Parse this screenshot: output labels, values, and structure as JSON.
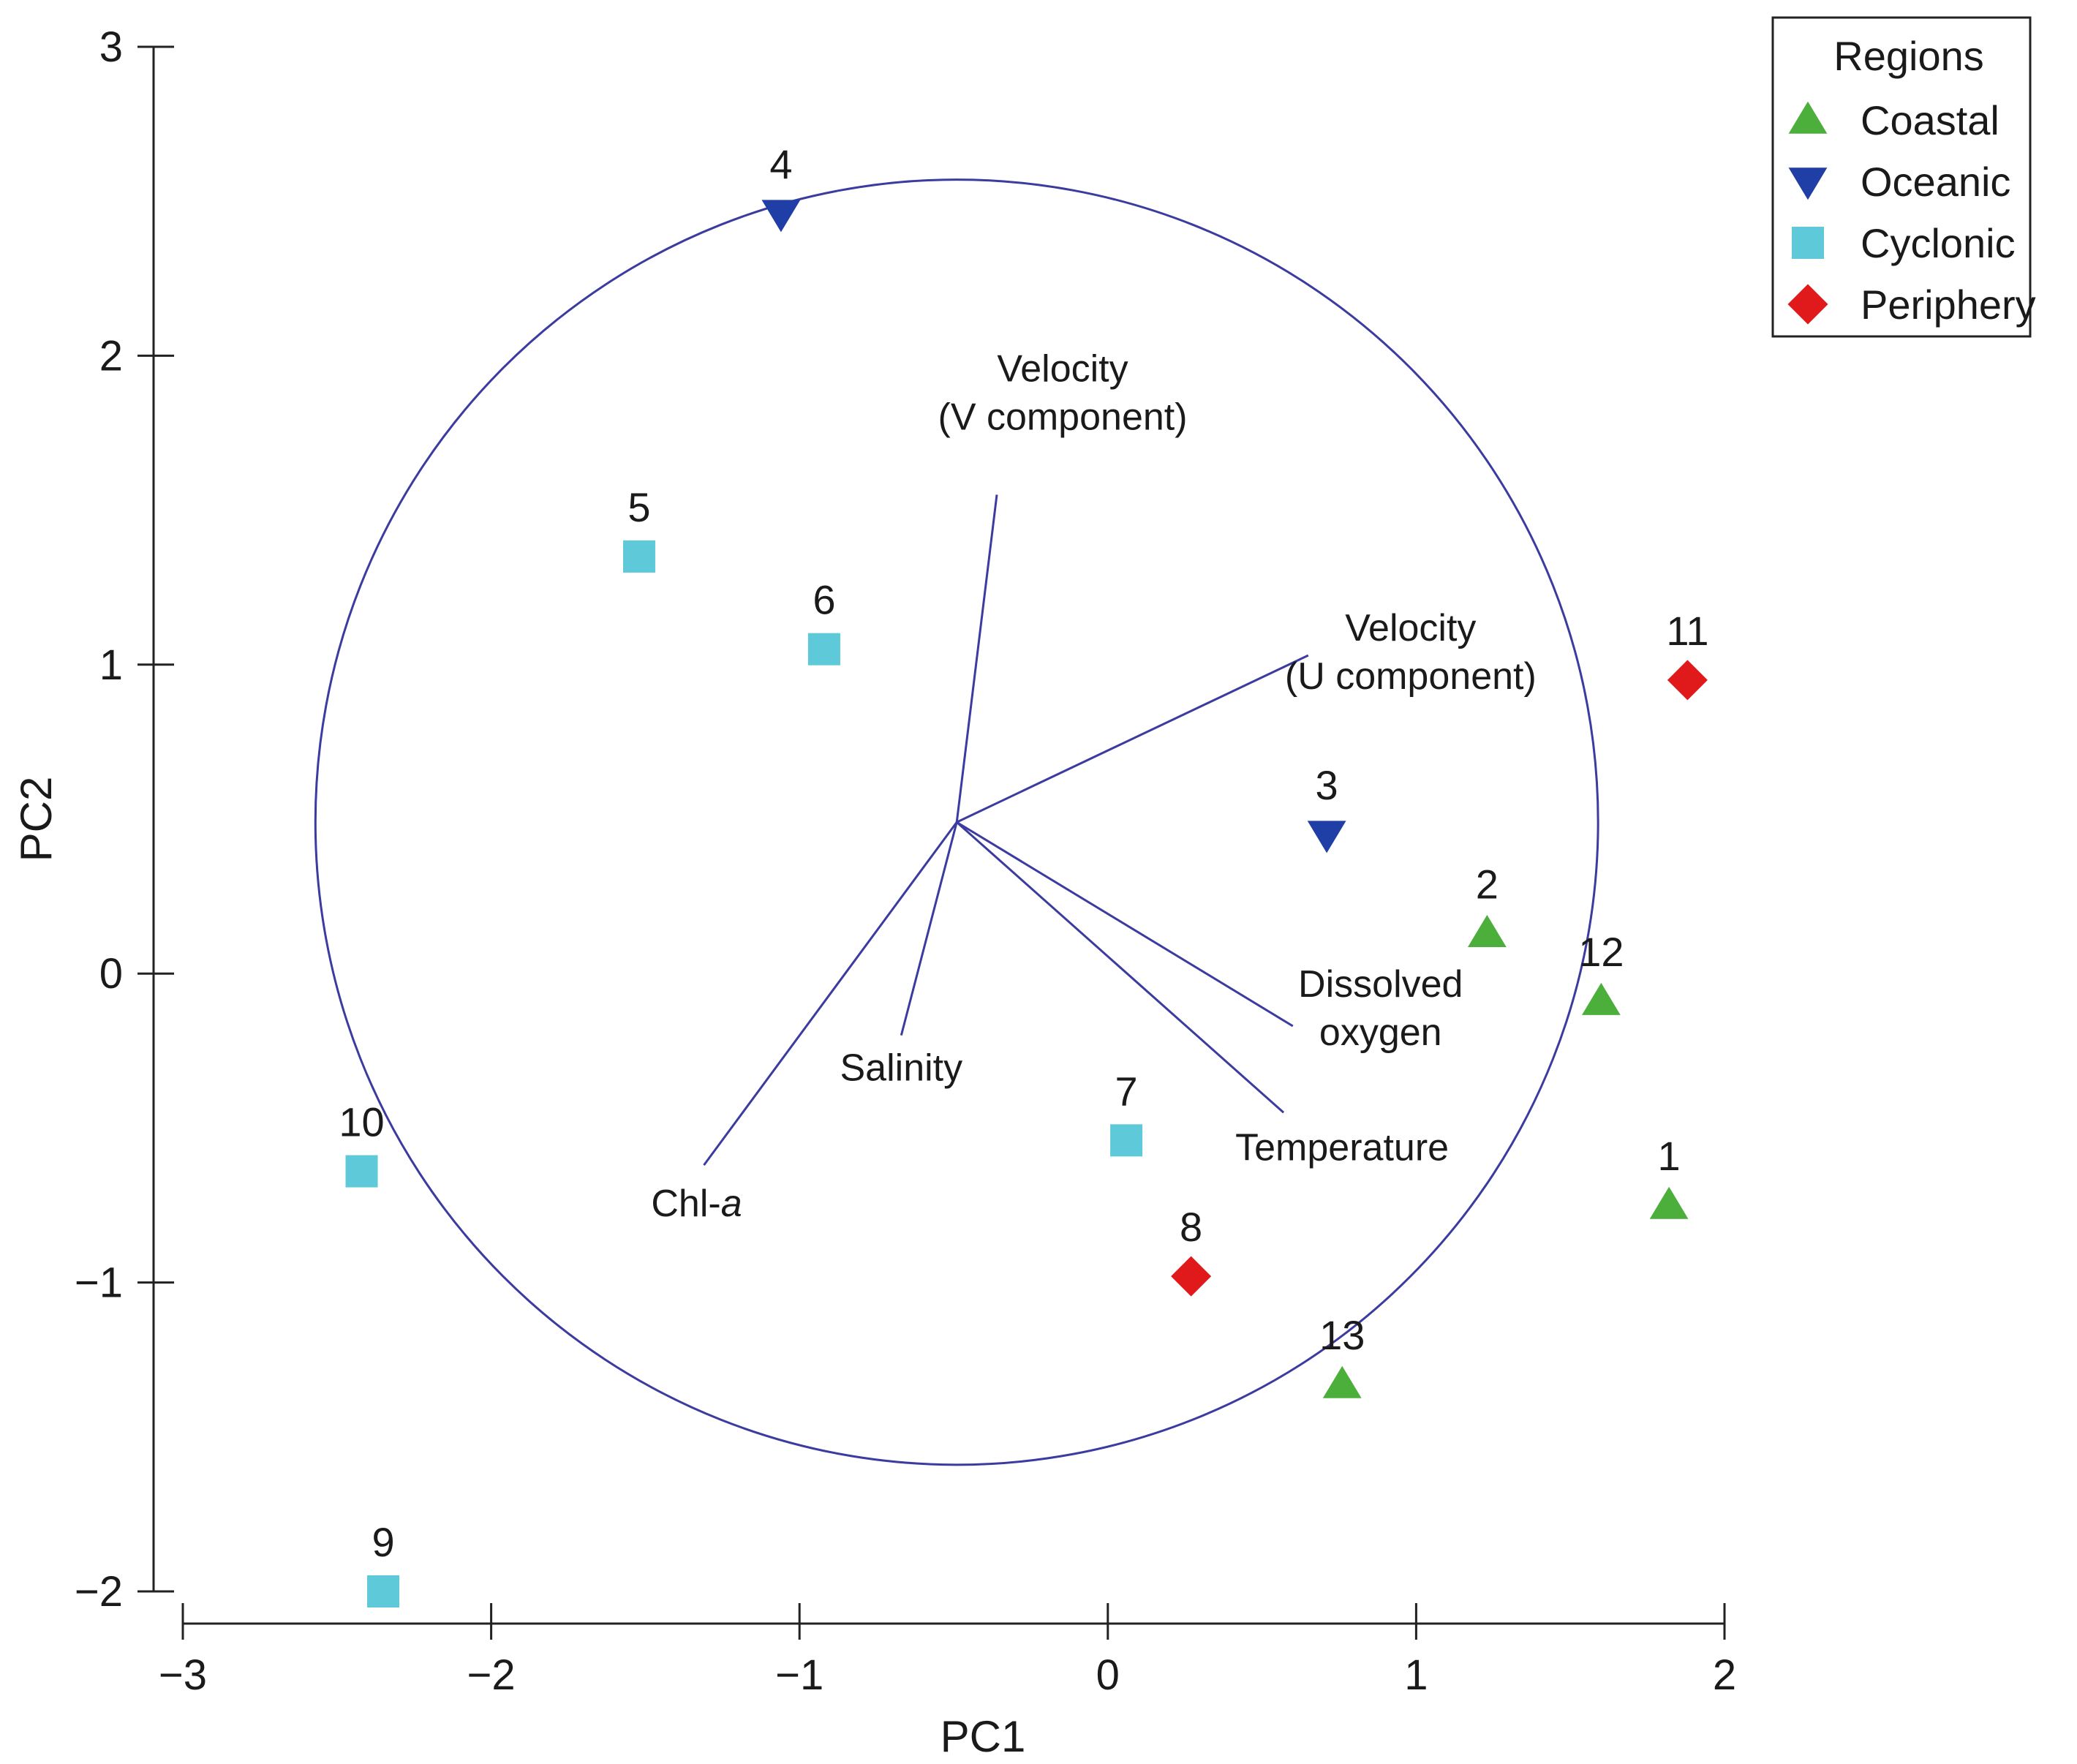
{
  "chart_data": {
    "type": "scatter",
    "subtype": "pca-biplot",
    "title": "",
    "xlabel": "PC1",
    "ylabel": "PC2",
    "xlim": [
      -3,
      2
    ],
    "ylim": [
      -2,
      3
    ],
    "xticks": [
      {
        "value": -3,
        "label": "−3"
      },
      {
        "value": -2,
        "label": "−2"
      },
      {
        "value": -1,
        "label": "−1"
      },
      {
        "value": 0,
        "label": "0"
      },
      {
        "value": 1,
        "label": "1"
      },
      {
        "value": 2,
        "label": "2"
      }
    ],
    "yticks": [
      {
        "value": -2,
        "label": "−2"
      },
      {
        "value": -1,
        "label": "−1"
      },
      {
        "value": 0,
        "label": "0"
      },
      {
        "value": 1,
        "label": "1"
      },
      {
        "value": 2,
        "label": "2"
      },
      {
        "value": 3,
        "label": "3"
      }
    ],
    "grid": false,
    "legend": {
      "title": "Regions",
      "position": "top-right",
      "entries": [
        {
          "name": "Coastal",
          "shape": "triangle-up",
          "color": "#4caf3c"
        },
        {
          "name": "Oceanic",
          "shape": "triangle-down",
          "color": "#1f3fa6"
        },
        {
          "name": "Cyclonic",
          "shape": "square",
          "color": "#5ec9d8"
        },
        {
          "name": "Periphery",
          "shape": "diamond",
          "color": "#e0191b"
        }
      ]
    },
    "series": [
      {
        "name": "Coastal",
        "shape": "triangle-up",
        "color": "#4caf3c",
        "points": [
          {
            "label": "1",
            "x": 1.82,
            "y": -0.75
          },
          {
            "label": "2",
            "x": 1.23,
            "y": 0.13
          },
          {
            "label": "12",
            "x": 1.6,
            "y": -0.09
          },
          {
            "label": "13",
            "x": 0.76,
            "y": -1.33
          }
        ]
      },
      {
        "name": "Oceanic",
        "shape": "triangle-down",
        "color": "#1f3fa6",
        "points": [
          {
            "label": "3",
            "x": 0.71,
            "y": 0.45
          },
          {
            "label": "4",
            "x": -1.06,
            "y": 2.46
          }
        ]
      },
      {
        "name": "Cyclonic",
        "shape": "square",
        "color": "#5ec9d8",
        "points": [
          {
            "label": "5",
            "x": -1.52,
            "y": 1.35
          },
          {
            "label": "6",
            "x": -0.92,
            "y": 1.05
          },
          {
            "label": "7",
            "x": 0.06,
            "y": -0.54
          },
          {
            "label": "9",
            "x": -2.35,
            "y": -2.0
          },
          {
            "label": "10",
            "x": -2.42,
            "y": -0.64
          }
        ]
      },
      {
        "name": "Periphery",
        "shape": "diamond",
        "color": "#e0191b",
        "points": [
          {
            "label": "8",
            "x": 0.27,
            "y": -0.98
          },
          {
            "label": "11",
            "x": 1.88,
            "y": 0.95
          }
        ]
      }
    ],
    "correlation_circle": {
      "center": [
        -0.49,
        0.49
      ],
      "radius": 2.08,
      "color": "#3b3ba0"
    },
    "loadings": [
      {
        "name": "Velocity (V component)",
        "lines": [
          "Velocity",
          "(V component)"
        ],
        "x": -0.36,
        "y": 1.55
      },
      {
        "name": "Velocity (U component)",
        "lines": [
          "Velocity",
          "(U component)"
        ],
        "x": 0.65,
        "y": 1.03
      },
      {
        "name": "Dissolved oxygen",
        "lines": [
          "Dissolved",
          "oxygen"
        ],
        "x": 0.6,
        "y": -0.17
      },
      {
        "name": "Temperature",
        "lines": [
          "Temperature"
        ],
        "x": 0.57,
        "y": -0.45
      },
      {
        "name": "Salinity",
        "lines": [
          "Salinity"
        ],
        "x": -0.67,
        "y": -0.2
      },
      {
        "name": "Chl-a",
        "lines": [
          "Chl-",
          "a"
        ],
        "x": -1.31,
        "y": -0.62
      }
    ]
  }
}
